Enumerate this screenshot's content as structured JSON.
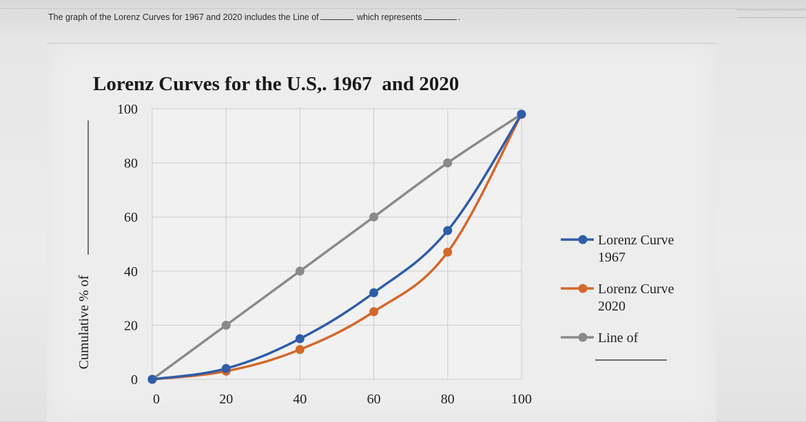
{
  "question": {
    "part1": "The graph of the Lorenz Curves for 1967 and 2020 includes the Line of",
    "part2": "which represents",
    "end": "."
  },
  "chart_data": {
    "type": "line",
    "title": "Lorenz Curves for the U.S,. 1967  and 2020",
    "ylabel": "Cumulative % of",
    "xlabel": "",
    "xlim": [
      0,
      100
    ],
    "ylim": [
      0,
      100
    ],
    "x_ticks": [
      "0",
      "20",
      "40",
      "60",
      "80",
      "100"
    ],
    "y_ticks": [
      "0",
      "20",
      "40",
      "60",
      "80",
      "100"
    ],
    "grid": true,
    "legend_position": "right",
    "x": [
      0,
      20,
      40,
      60,
      80,
      100
    ],
    "series": [
      {
        "name": "Lorenz Curve 1967",
        "legend_lines": [
          "Lorenz Curve",
          "1967"
        ],
        "color": "#2f5da8",
        "values": [
          0,
          4,
          15,
          32,
          55,
          98
        ]
      },
      {
        "name": "Lorenz Curve 2020",
        "legend_lines": [
          "Lorenz Curve",
          "2020"
        ],
        "color": "#d4682b",
        "values": [
          0,
          3,
          11,
          25,
          47,
          98
        ]
      },
      {
        "name": "Line of",
        "legend_lines": [
          "Line of"
        ],
        "color": "#8a8a8a",
        "values": [
          0,
          20,
          40,
          60,
          80,
          98
        ]
      }
    ]
  }
}
